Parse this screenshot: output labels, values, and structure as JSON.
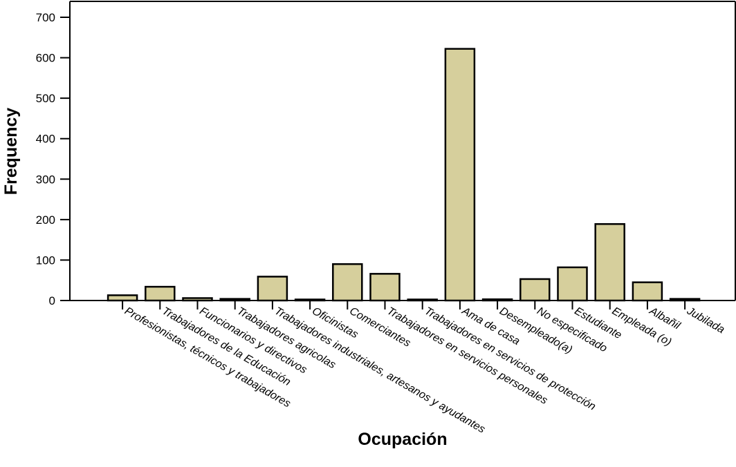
{
  "chart_data": {
    "type": "bar",
    "xlabel": "Ocupación",
    "ylabel": "Frequency",
    "ylim": [
      0,
      700
    ],
    "yticks": [
      0,
      100,
      200,
      300,
      400,
      500,
      600,
      700
    ],
    "grid": false,
    "bar_color": "#d6cf9c",
    "categories": [
      "Profesionistas, técnicos y trabajadores",
      "Trabajadores de la Educación",
      "Funcionarios y directivos",
      "Trabajadores agricolas",
      "Trabajadores industriales, artesanos y ayudantes",
      "Oficinistas",
      "Comerciantes",
      "Trabajadores en servicios personales",
      "Trabajadores en servicios de protección",
      "Ama de casa",
      "Desempleado(a)",
      "No especificado",
      "Estudiante",
      "Empleada (o)",
      "Albañil",
      "Jubilada"
    ],
    "values": [
      13,
      34,
      6,
      4,
      59,
      2,
      90,
      66,
      2,
      622,
      3,
      53,
      82,
      189,
      45,
      4
    ]
  }
}
